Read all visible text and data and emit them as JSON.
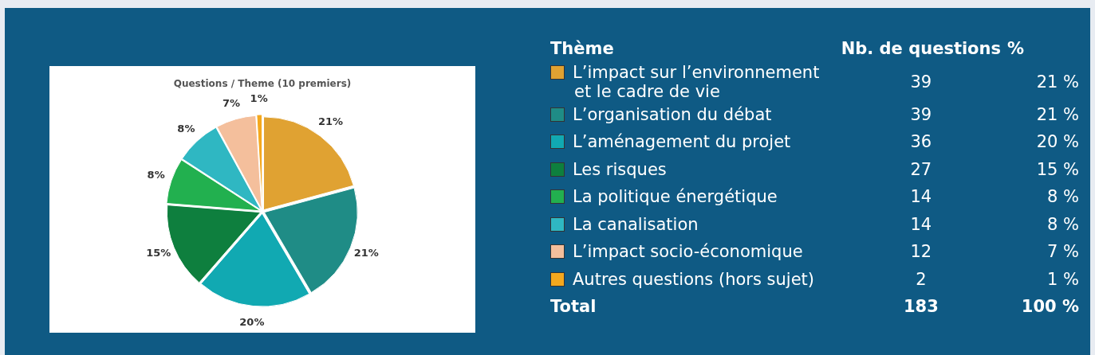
{
  "chart_data": {
    "type": "pie",
    "title": "Questions / Theme (10 premiers)",
    "categories": [
      "L’impact sur l’environnement et le cadre de vie",
      "L’organisation du débat",
      "L’aménagement du projet",
      "Les risques",
      "La politique énergétique",
      "La canalisation",
      "L’impact socio-économique",
      "Autres questions (hors sujet)"
    ],
    "values": [
      21,
      21,
      20,
      15,
      8,
      8,
      7,
      1
    ],
    "colors": [
      "#e0a232",
      "#1f8c86",
      "#11a9b2",
      "#0e7f3e",
      "#22b04f",
      "#2fb7c2",
      "#f4bf9c",
      "#f4a81e"
    ],
    "value_labels": [
      "21%",
      "21%",
      "20%",
      "15%",
      "8%",
      "8%",
      "7%",
      "1%"
    ],
    "legend": "right",
    "annotations": [
      "Thème",
      "Nb. de questions",
      "%",
      "39",
      "39",
      "36",
      "27",
      "14",
      "14",
      "12",
      "2",
      "21 %",
      "21 %",
      "20 %",
      "15 %",
      "8 %",
      "8 %",
      "7 %",
      "1 %",
      "Total",
      "183",
      "100 %"
    ]
  }
}
